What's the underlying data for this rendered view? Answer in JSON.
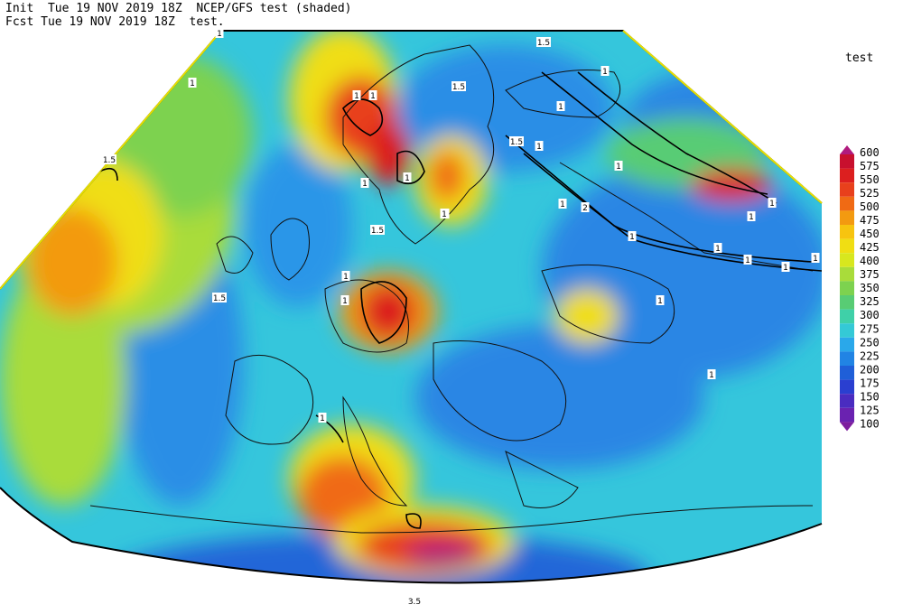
{
  "header": {
    "line1": "Init  Tue 19 NOV 2019 18Z  NCEP/GFS test (shaded)",
    "line2": "Fcst Tue 19 NOV 2019 18Z  test."
  },
  "legend": {
    "title": "test",
    "levels": [
      600,
      575,
      550,
      525,
      500,
      475,
      450,
      425,
      400,
      375,
      350,
      325,
      300,
      275,
      250,
      225,
      200,
      175,
      150,
      125,
      100
    ],
    "colors": [
      "#b01a7e",
      "#c8102e",
      "#dc1f1f",
      "#e8401c",
      "#f06a14",
      "#f39a10",
      "#f7c40f",
      "#f0de13",
      "#d8e71e",
      "#a9dc3a",
      "#7dd24f",
      "#58cc74",
      "#3fd0a8",
      "#34c9d6",
      "#2aa8ea",
      "#2184e4",
      "#1f5fd8",
      "#2a3fd0",
      "#4a2cc0",
      "#6a22b0",
      "#7d1e9e"
    ]
  },
  "contour_labels": [
    "1",
    "1",
    "1",
    "1",
    "1.5",
    "1.5",
    "1",
    "1",
    "1.5",
    "1",
    "1",
    "1.5",
    "1",
    "1",
    "1",
    "1",
    "1",
    "1",
    "1",
    "1",
    "1",
    "1",
    "1.5",
    "1",
    "1.5",
    "1",
    "1",
    "1",
    "1",
    "1",
    "2",
    "1",
    "1",
    "3.5"
  ]
}
